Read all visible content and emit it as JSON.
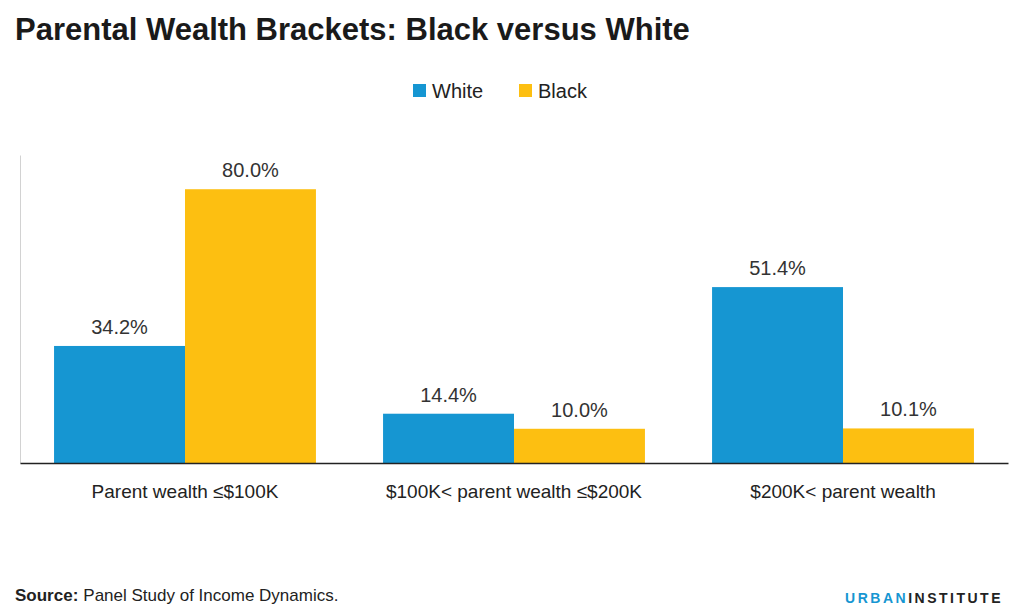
{
  "chart_data": {
    "type": "bar",
    "title": "Parental Wealth Brackets: Black versus White",
    "categories": [
      "Parent wealth ≤$100K",
      "$100K< parent wealth ≤$200K",
      "$200K< parent wealth"
    ],
    "series": [
      {
        "name": "White",
        "color": "#1696d2",
        "values": [
          34.2,
          14.4,
          51.4
        ],
        "value_labels": [
          "34.2%",
          "14.4%",
          "51.4%"
        ]
      },
      {
        "name": "Black",
        "color": "#fdbf11",
        "values": [
          80.0,
          10.0,
          10.1
        ],
        "value_labels": [
          "80.0%",
          "10.0%",
          "10.1%"
        ]
      }
    ],
    "ylim": [
      0,
      90
    ],
    "yticks": [
      0
    ],
    "tick_labels": "x",
    "data_labels": true,
    "legend": "top",
    "grid": false,
    "source_label": "Source:",
    "source": "Panel Study of Income Dynamics.",
    "logo": [
      "URBAN",
      "INSTITUTE"
    ]
  }
}
